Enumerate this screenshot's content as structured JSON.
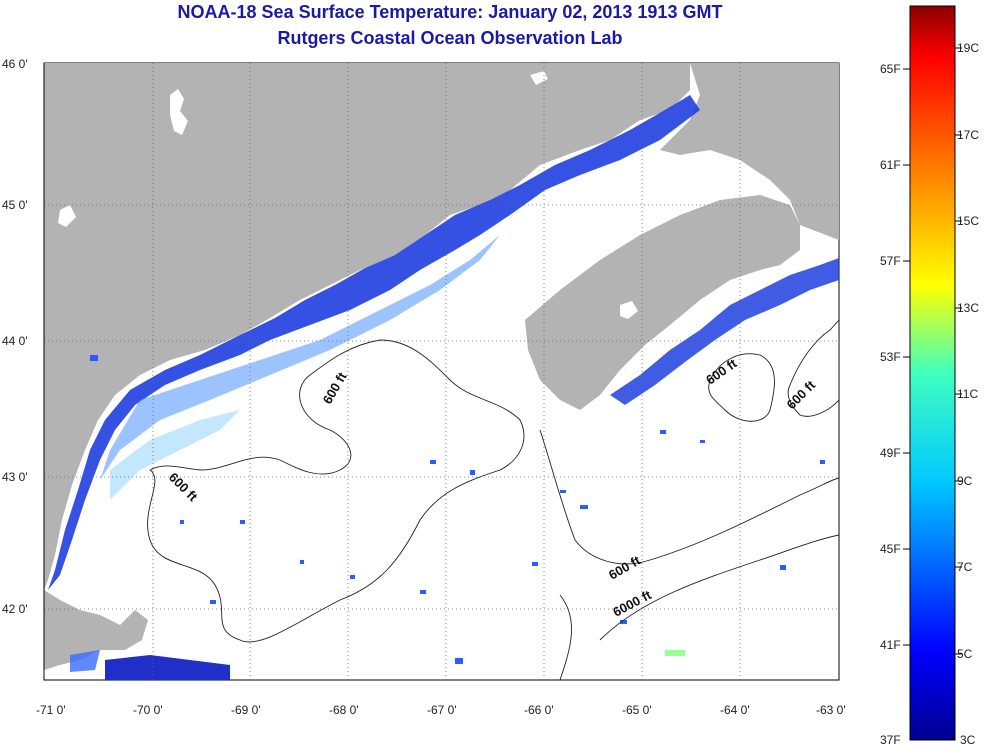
{
  "title_line1": "NOAA-18 Sea Surface Temperature:  January 02, 2013 1913 GMT",
  "title_line2": "Rutgers Coastal Ocean Observation Lab",
  "lat_labels": [
    "46 0'",
    "45 0'",
    "44 0'",
    "43 0'",
    "42 0'"
  ],
  "lon_labels": [
    "-71 0'",
    "-70 0'",
    "-69 0'",
    "-68 0'",
    "-67 0'",
    "-66 0'",
    "-65 0'",
    "-64 0'",
    "-63 0'"
  ],
  "colorbar": {
    "fahrenheit_labels": [
      "65F",
      "61F",
      "57F",
      "53F",
      "49F",
      "45F",
      "41F",
      "37F"
    ],
    "celsius_labels": [
      "19C",
      "17C",
      "15C",
      "13C",
      "11C",
      "9C",
      "7C",
      "5C",
      "3C"
    ],
    "min_c": 3,
    "max_c": 20
  },
  "contour_labels": {
    "c1": "600 ft",
    "c2": "600 ft",
    "c3": "600 ft",
    "c4": "600 ft",
    "c5": "600 ft",
    "c6": "6000 ft"
  },
  "colors": {
    "land": "#b3b3b3",
    "ocean_nodata": "#ffffff",
    "title": "#1a1aa6",
    "cold_water": "#1f3fe0"
  }
}
